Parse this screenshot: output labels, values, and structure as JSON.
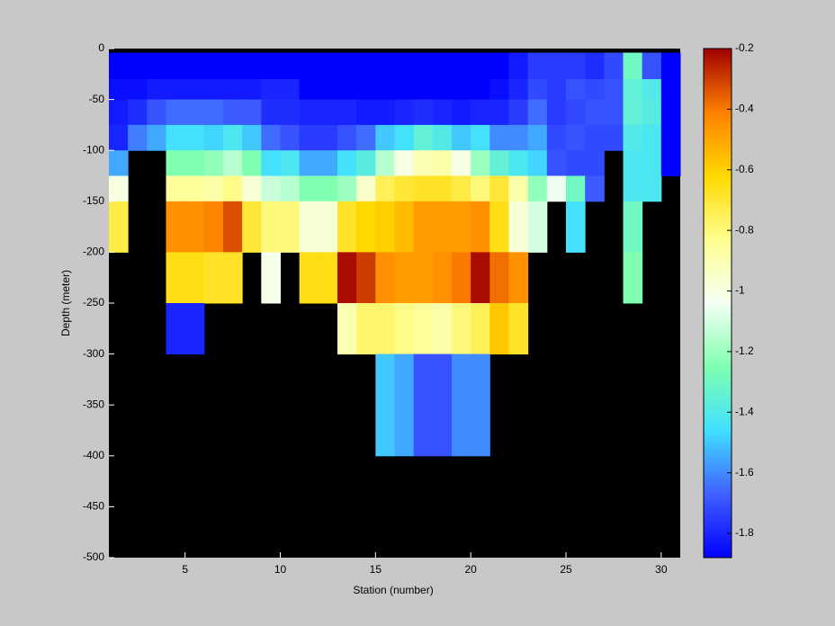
{
  "chart_data": {
    "type": "heatmap",
    "xlabel": "Station (number)",
    "ylabel": "Depth (meter)",
    "xlim": [
      1,
      31
    ],
    "ylim": [
      -500,
      0
    ],
    "xticks": [
      5,
      10,
      15,
      20,
      25,
      30
    ],
    "yticks": [
      0,
      -50,
      -100,
      -150,
      -200,
      -250,
      -300,
      -350,
      -400,
      -450,
      -500
    ],
    "x_edges": [
      1,
      2,
      3,
      4,
      5,
      6,
      7,
      8,
      9,
      10,
      11,
      12,
      13,
      14,
      15,
      16,
      17,
      18,
      19,
      20,
      21,
      22,
      23,
      24,
      25,
      26,
      27,
      28,
      29,
      30,
      31
    ],
    "y_edges": [
      -4,
      -30,
      -50,
      -75,
      -100,
      -125,
      -150,
      -200,
      -250,
      -300,
      -400
    ],
    "clim": [
      -1.88,
      -0.2
    ],
    "cticks": [
      -0.2,
      -0.4,
      -0.6,
      -0.8,
      -1,
      -1.2,
      -1.4,
      -1.6,
      -1.8
    ],
    "colormap": [
      "#0000ff",
      "#4060ff",
      "#40e0ff",
      "#80ffb0",
      "#f4fff4",
      "#ffff90",
      "#ffd800",
      "#ff8000",
      "#a00000"
    ],
    "background": "#000000",
    "z": [
      [
        -1.88,
        -1.88,
        -1.88,
        -1.88,
        -1.88,
        -1.88,
        -1.88,
        -1.88,
        -1.88,
        -1.88,
        -1.88,
        -1.88,
        -1.88,
        -1.88,
        -1.88,
        -1.88,
        -1.88,
        -1.88,
        -1.88,
        -1.88,
        -1.88,
        -1.82,
        -1.75,
        -1.75,
        -1.75,
        -1.78,
        -1.72,
        -1.3,
        -1.7,
        -1.88
      ],
      [
        -1.85,
        -1.85,
        -1.82,
        -1.82,
        -1.82,
        -1.82,
        -1.82,
        -1.82,
        -1.8,
        -1.8,
        -1.88,
        -1.88,
        -1.88,
        -1.88,
        -1.88,
        -1.88,
        -1.88,
        -1.88,
        -1.88,
        -1.88,
        -1.85,
        -1.8,
        -1.72,
        -1.75,
        -1.7,
        -1.72,
        -1.7,
        -1.35,
        -1.4,
        -1.88
      ],
      [
        -1.82,
        -1.78,
        -1.7,
        -1.65,
        -1.65,
        -1.65,
        -1.68,
        -1.68,
        -1.78,
        -1.78,
        -1.8,
        -1.8,
        -1.8,
        -1.82,
        -1.82,
        -1.8,
        -1.78,
        -1.8,
        -1.82,
        -1.8,
        -1.8,
        -1.75,
        -1.65,
        -1.75,
        -1.72,
        -1.7,
        -1.7,
        -1.35,
        -1.38,
        -1.88
      ],
      [
        -1.8,
        -1.62,
        -1.55,
        -1.45,
        -1.45,
        -1.48,
        -1.42,
        -1.5,
        -1.65,
        -1.7,
        -1.75,
        -1.75,
        -1.7,
        -1.65,
        -1.5,
        -1.45,
        -1.35,
        -1.4,
        -1.5,
        -1.45,
        -1.6,
        -1.6,
        -1.55,
        -1.72,
        -1.7,
        -1.72,
        -1.72,
        -1.4,
        -1.42,
        -1.88
      ],
      [
        -1.55,
        null,
        null,
        -1.25,
        -1.25,
        -1.22,
        -1.15,
        -1.25,
        -1.45,
        -1.42,
        -1.55,
        -1.55,
        -1.45,
        -1.38,
        -1.15,
        -1.0,
        -0.9,
        -0.88,
        -1.0,
        -1.2,
        -1.35,
        -1.42,
        -1.48,
        -1.7,
        -1.72,
        -1.72,
        null,
        -1.42,
        -1.42,
        -1.88
      ],
      [
        -1.0,
        null,
        null,
        -0.85,
        -0.85,
        -0.88,
        -0.82,
        -0.98,
        -1.12,
        -1.15,
        -1.25,
        -1.25,
        -1.2,
        -0.95,
        -0.75,
        -0.7,
        -0.68,
        -0.68,
        -0.72,
        -0.8,
        -0.7,
        -0.88,
        -1.22,
        -1.05,
        -1.3,
        -1.68,
        null,
        -1.42,
        -1.42,
        null
      ],
      [
        -0.72,
        null,
        null,
        -0.45,
        -0.45,
        -0.42,
        -0.33,
        -0.7,
        -0.8,
        -0.8,
        -0.98,
        -0.98,
        -0.68,
        -0.62,
        -0.6,
        -0.55,
        -0.48,
        -0.48,
        -0.48,
        -0.45,
        -0.65,
        -0.98,
        -1.1,
        null,
        -1.45,
        null,
        null,
        -1.3,
        null,
        null
      ],
      [
        null,
        null,
        null,
        -0.65,
        -0.65,
        -0.68,
        -0.68,
        null,
        -1.02,
        null,
        -0.65,
        -0.65,
        -0.22,
        -0.3,
        -0.45,
        -0.48,
        -0.48,
        -0.45,
        -0.4,
        -0.22,
        -0.38,
        -0.45,
        null,
        null,
        null,
        null,
        null,
        -1.25,
        null,
        null
      ],
      [
        null,
        null,
        null,
        -1.8,
        -1.8,
        null,
        null,
        null,
        null,
        null,
        null,
        null,
        -0.9,
        -0.78,
        -0.78,
        -0.82,
        -0.85,
        -0.88,
        -0.8,
        -0.75,
        -0.58,
        -0.68,
        null,
        null,
        null,
        null,
        null,
        null,
        null,
        null
      ],
      [
        null,
        null,
        null,
        null,
        null,
        null,
        null,
        null,
        null,
        null,
        null,
        null,
        null,
        null,
        -1.5,
        -1.55,
        -1.7,
        -1.7,
        -1.6,
        -1.6,
        null,
        null,
        null,
        null,
        null,
        null,
        null,
        null,
        null,
        null
      ]
    ]
  }
}
